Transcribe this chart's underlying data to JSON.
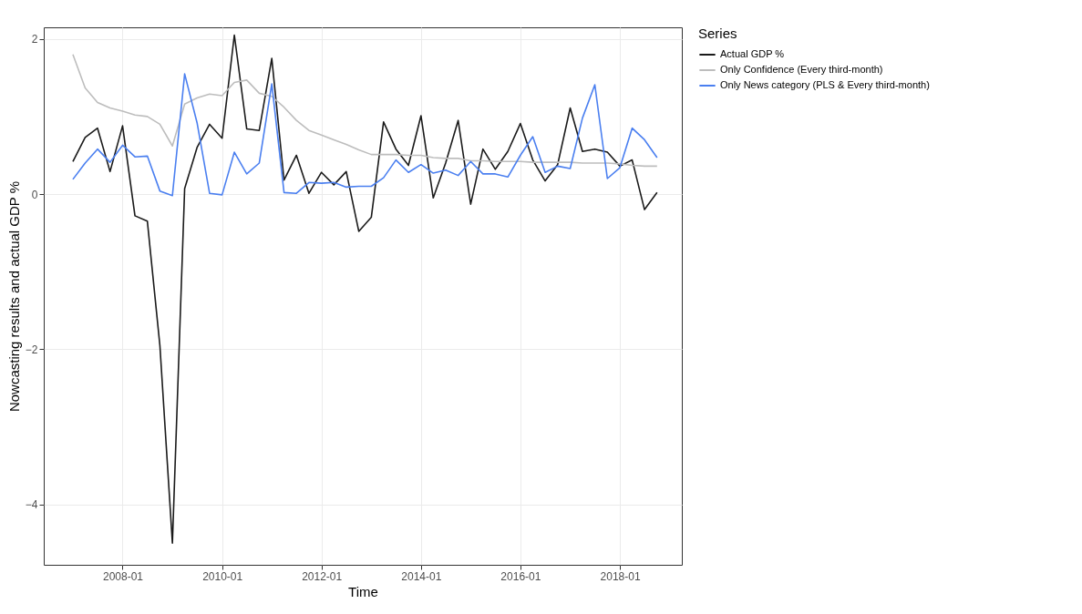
{
  "chart_data": {
    "type": "line",
    "xlabel": "Time",
    "ylabel": "Nowcasting results and actual GDP %",
    "legend_title": "Series",
    "legend": "right",
    "grid": true,
    "x": [
      "2007-01",
      "2007-04",
      "2007-07",
      "2007-10",
      "2008-01",
      "2008-04",
      "2008-07",
      "2008-10",
      "2009-01",
      "2009-04",
      "2009-07",
      "2009-10",
      "2010-01",
      "2010-04",
      "2010-07",
      "2010-10",
      "2011-01",
      "2011-04",
      "2011-07",
      "2011-10",
      "2012-01",
      "2012-04",
      "2012-07",
      "2012-10",
      "2013-01",
      "2013-04",
      "2013-07",
      "2013-10",
      "2014-01",
      "2014-04",
      "2014-07",
      "2014-10",
      "2015-01",
      "2015-04",
      "2015-07",
      "2015-10",
      "2016-01",
      "2016-04",
      "2016-07",
      "2016-10",
      "2017-01",
      "2017-04",
      "2017-07",
      "2017-10",
      "2018-01",
      "2018-04",
      "2018-07",
      "2018-10"
    ],
    "xlim": [
      "2006-06",
      "2019-04"
    ],
    "xticks": [
      "2008-01",
      "2010-01",
      "2012-01",
      "2014-01",
      "2016-01",
      "2018-01"
    ],
    "ylim": [
      -4.78,
      2.15
    ],
    "yticks": [
      -4,
      -2,
      0,
      2
    ],
    "series": [
      {
        "name": "Actual GDP %",
        "color": "#1a1a1a",
        "values": [
          0.42,
          0.73,
          0.85,
          0.29,
          0.88,
          -0.28,
          -0.35,
          -1.95,
          -4.5,
          0.07,
          0.6,
          0.9,
          0.72,
          2.05,
          0.84,
          0.82,
          1.75,
          0.18,
          0.5,
          0.01,
          0.28,
          0.12,
          0.29,
          -0.48,
          -0.3,
          0.93,
          0.58,
          0.37,
          1.01,
          -0.05,
          0.4,
          0.95,
          -0.13,
          0.58,
          0.32,
          0.55,
          0.91,
          0.44,
          0.17,
          0.38,
          1.11,
          0.55,
          0.58,
          0.54,
          0.36,
          0.44,
          -0.2,
          0.02
        ]
      },
      {
        "name": "Only Confidence (Every third-month)",
        "color": "#bdbdbd",
        "values": [
          1.8,
          1.37,
          1.18,
          1.11,
          1.07,
          1.02,
          1.0,
          0.9,
          0.62,
          1.16,
          1.24,
          1.29,
          1.27,
          1.44,
          1.47,
          1.3,
          1.26,
          1.12,
          0.95,
          0.82,
          0.76,
          0.7,
          0.64,
          0.57,
          0.51,
          0.51,
          0.51,
          0.5,
          0.5,
          0.47,
          0.46,
          0.46,
          0.43,
          0.43,
          0.42,
          0.42,
          0.42,
          0.41,
          0.41,
          0.41,
          0.41,
          0.4,
          0.4,
          0.4,
          0.39,
          0.37,
          0.36,
          0.36
        ]
      },
      {
        "name": "Only News category (PLS & Every third-month)",
        "color": "#4a7ff0",
        "values": [
          0.19,
          0.4,
          0.58,
          0.41,
          0.63,
          0.48,
          0.49,
          0.04,
          -0.02,
          1.55,
          0.92,
          0.01,
          -0.01,
          0.54,
          0.26,
          0.4,
          1.42,
          0.02,
          0.01,
          0.15,
          0.14,
          0.15,
          0.09,
          0.1,
          0.1,
          0.21,
          0.44,
          0.28,
          0.38,
          0.27,
          0.31,
          0.24,
          0.42,
          0.26,
          0.26,
          0.22,
          0.5,
          0.74,
          0.28,
          0.36,
          0.33,
          0.98,
          1.41,
          0.2,
          0.34,
          0.85,
          0.7,
          0.47
        ]
      }
    ]
  }
}
